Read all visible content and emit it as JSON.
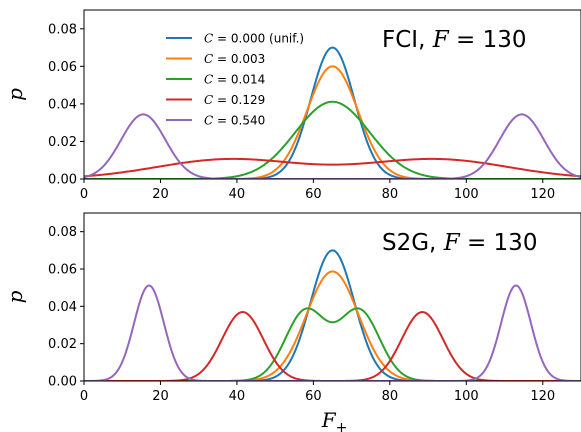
{
  "chart_data": [
    {
      "type": "line",
      "title": "FCI, F = 130",
      "title_parts": {
        "prefix": "FCI, ",
        "var": "F",
        "suffix": " = 130"
      },
      "ylabel": "p",
      "xlabel": "",
      "xlim": [
        0,
        130
      ],
      "ylim": [
        0,
        0.09
      ],
      "xticks": [
        0,
        20,
        40,
        60,
        80,
        100,
        120
      ],
      "yticks": [
        0.0,
        0.02,
        0.04,
        0.06,
        0.08
      ],
      "ytick_labels": [
        "0.00",
        "0.02",
        "0.04",
        "0.06",
        "0.08"
      ],
      "legend_position": "upper-left-center",
      "series": [
        {
          "name": "C = 0.000 (unif.)",
          "label_var": "C",
          "label_val": " = 0.000 (unif.)",
          "color": "#1f77b4",
          "components": [
            {
              "mean": 65,
              "sigma": 5.7,
              "weight": 1.0
            }
          ]
        },
        {
          "name": "C = 0.003",
          "label_var": "C",
          "label_val": " = 0.003",
          "color": "#ff7f0e",
          "components": [
            {
              "mean": 65,
              "sigma": 6.65,
              "weight": 1.0
            }
          ]
        },
        {
          "name": "C = 0.014",
          "label_var": "C",
          "label_val": " = 0.014",
          "color": "#2ca02c",
          "components": [
            {
              "mean": 65,
              "sigma": 9.7,
              "weight": 1.0
            }
          ]
        },
        {
          "name": "C = 0.129",
          "label_var": "C",
          "label_val": " = 0.129",
          "color": "#d62728",
          "components": [
            {
              "mean": 38,
              "sigma": 19,
              "weight": 0.5
            },
            {
              "mean": 92,
              "sigma": 19,
              "weight": 0.5
            }
          ]
        },
        {
          "name": "C = 0.540",
          "label_var": "C",
          "label_val": " = 0.540",
          "color": "#9467bd",
          "components": [
            {
              "mean": 15.5,
              "sigma": 5.8,
              "weight": 0.5
            },
            {
              "mean": 114.5,
              "sigma": 5.8,
              "weight": 0.5
            }
          ]
        }
      ]
    },
    {
      "type": "line",
      "title": "S2G, F = 130",
      "title_parts": {
        "prefix": "S2G, ",
        "var": "F",
        "suffix": " = 130"
      },
      "ylabel": "p",
      "xlabel": "F+",
      "xlabel_parts": {
        "var": "F",
        "sub": "+"
      },
      "xlim": [
        0,
        130
      ],
      "ylim": [
        0,
        0.09
      ],
      "xticks": [
        0,
        20,
        40,
        60,
        80,
        100,
        120
      ],
      "yticks": [
        0.0,
        0.02,
        0.04,
        0.06,
        0.08
      ],
      "ytick_labels": [
        "0.00",
        "0.02",
        "0.04",
        "0.06",
        "0.08"
      ],
      "series": [
        {
          "color": "#1f77b4",
          "components": [
            {
              "mean": 65,
              "sigma": 5.7,
              "weight": 1.0
            }
          ]
        },
        {
          "color": "#ff7f0e",
          "components": [
            {
              "mean": 65,
              "sigma": 6.8,
              "weight": 1.0
            }
          ]
        },
        {
          "color": "#2ca02c",
          "components": [
            {
              "mean": 58,
              "sigma": 5.3,
              "weight": 0.5
            },
            {
              "mean": 72,
              "sigma": 5.3,
              "weight": 0.5
            }
          ]
        },
        {
          "color": "#d62728",
          "components": [
            {
              "mean": 41.5,
              "sigma": 5.4,
              "weight": 0.5
            },
            {
              "mean": 88.5,
              "sigma": 5.4,
              "weight": 0.5
            }
          ]
        },
        {
          "color": "#9467bd",
          "components": [
            {
              "mean": 17,
              "sigma": 3.9,
              "weight": 0.5
            },
            {
              "mean": 113,
              "sigma": 3.9,
              "weight": 0.5
            }
          ]
        }
      ]
    }
  ]
}
